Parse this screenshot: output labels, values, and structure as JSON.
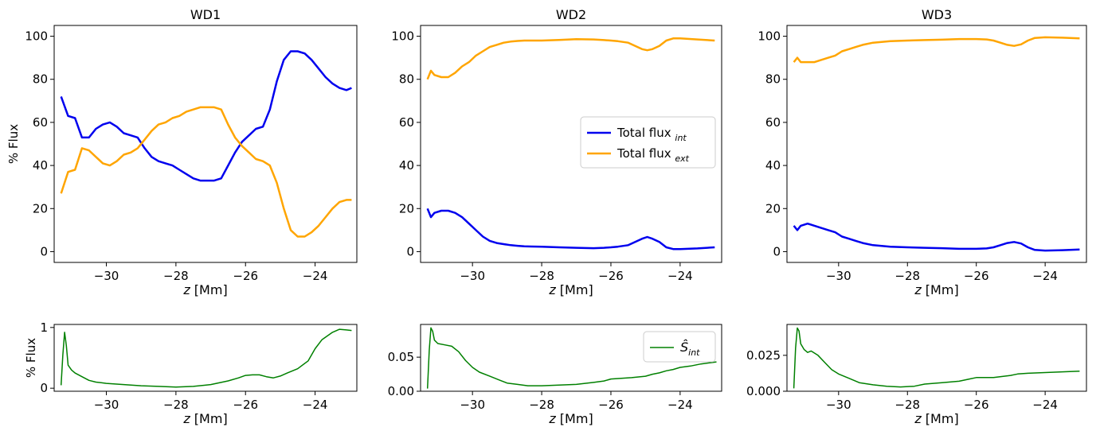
{
  "chart_data": [
    {
      "type": "line",
      "title": "WD1",
      "xlabel": "z [Mm]",
      "ylabel": "% Flux",
      "xlim": [
        -31.5,
        -22.8
      ],
      "ylim": [
        -5,
        105
      ],
      "xticks": [
        -30,
        -28,
        -26,
        -24
      ],
      "xtick_labels": [
        "−30",
        "−28",
        "−26",
        "−24"
      ],
      "yticks": [
        0,
        20,
        40,
        60,
        80,
        100
      ],
      "ytick_labels": [
        "0",
        "20",
        "40",
        "60",
        "80",
        "100"
      ],
      "series": [
        {
          "color": "#0000ee",
          "x": [
            -31.3,
            -31.1,
            -30.9,
            -30.7,
            -30.5,
            -30.3,
            -30.1,
            -29.9,
            -29.7,
            -29.5,
            -29.3,
            -29.1,
            -28.9,
            -28.7,
            -28.5,
            -28.3,
            -28.1,
            -27.9,
            -27.7,
            -27.5,
            -27.3,
            -27.1,
            -26.9,
            -26.7,
            -26.5,
            -26.3,
            -26.1,
            -25.9,
            -25.7,
            -25.5,
            -25.3,
            -25.1,
            -24.9,
            -24.7,
            -24.5,
            -24.3,
            -24.1,
            -23.9,
            -23.7,
            -23.5,
            -23.3,
            -23.1,
            -22.95
          ],
          "y": [
            72,
            63,
            62,
            53,
            53,
            57,
            59,
            60,
            58,
            55,
            54,
            53,
            48,
            44,
            42,
            41,
            40,
            38,
            36,
            34,
            33,
            33,
            33,
            34,
            40,
            46,
            51,
            54,
            57,
            58,
            66,
            79,
            89,
            93,
            93,
            92,
            89,
            85,
            81,
            78,
            76,
            75,
            76
          ]
        },
        {
          "color": "#ffa500",
          "x": [
            -31.3,
            -31.1,
            -30.9,
            -30.7,
            -30.5,
            -30.3,
            -30.1,
            -29.9,
            -29.7,
            -29.5,
            -29.3,
            -29.1,
            -28.9,
            -28.7,
            -28.5,
            -28.3,
            -28.1,
            -27.9,
            -27.7,
            -27.5,
            -27.3,
            -27.1,
            -26.9,
            -26.7,
            -26.5,
            -26.3,
            -26.1,
            -25.9,
            -25.7,
            -25.5,
            -25.3,
            -25.1,
            -24.9,
            -24.7,
            -24.5,
            -24.3,
            -24.1,
            -23.9,
            -23.7,
            -23.5,
            -23.3,
            -23.1,
            -22.95
          ],
          "y": [
            27,
            37,
            38,
            48,
            47,
            44,
            41,
            40,
            42,
            45,
            46,
            48,
            52,
            56,
            59,
            60,
            62,
            63,
            65,
            66,
            67,
            67,
            67,
            66,
            59,
            53,
            49,
            46,
            43,
            42,
            40,
            32,
            20,
            10,
            7,
            7,
            9,
            12,
            16,
            20,
            23,
            24,
            24
          ]
        }
      ]
    },
    {
      "type": "line",
      "title": "WD2",
      "xlabel": "z [Mm]",
      "ylabel": "",
      "xlim": [
        -31.5,
        -22.8
      ],
      "ylim": [
        -5,
        105
      ],
      "xticks": [
        -30,
        -28,
        -26,
        -24
      ],
      "xtick_labels": [
        "−30",
        "−28",
        "−26",
        "−24"
      ],
      "yticks": [
        0,
        20,
        40,
        60,
        80,
        100
      ],
      "ytick_labels": [
        "0",
        "20",
        "40",
        "60",
        "80",
        "100"
      ],
      "legend": {
        "placement": "center-right",
        "entries": [
          "Total flux",
          "Total flux"
        ],
        "subscripts": [
          "int",
          "ext"
        ]
      },
      "series": [
        {
          "color": "#0000ee",
          "x": [
            -31.3,
            -31.2,
            -31.1,
            -30.9,
            -30.7,
            -30.5,
            -30.3,
            -30.1,
            -29.9,
            -29.7,
            -29.5,
            -29.3,
            -29.1,
            -28.9,
            -28.7,
            -28.5,
            -28.3,
            -28.0,
            -27.5,
            -27.0,
            -26.5,
            -26.2,
            -26.0,
            -25.8,
            -25.5,
            -25.3,
            -25.1,
            -24.95,
            -24.8,
            -24.6,
            -24.4,
            -24.2,
            -24.0,
            -23.5,
            -23.0
          ],
          "y": [
            20,
            16,
            18,
            19,
            19,
            18,
            16,
            13,
            10,
            7,
            5,
            4,
            3.5,
            3,
            2.7,
            2.5,
            2.4,
            2.3,
            2,
            1.8,
            1.6,
            1.8,
            2,
            2.3,
            3,
            4.5,
            6,
            6.8,
            6,
            4.5,
            2,
            1.2,
            1.2,
            1.5,
            2
          ]
        },
        {
          "color": "#ffa500",
          "x": [
            -31.3,
            -31.2,
            -31.1,
            -30.9,
            -30.7,
            -30.5,
            -30.3,
            -30.1,
            -29.9,
            -29.7,
            -29.5,
            -29.3,
            -29.1,
            -28.9,
            -28.7,
            -28.5,
            -28.3,
            -28.0,
            -27.5,
            -27.0,
            -26.5,
            -26.2,
            -26.0,
            -25.8,
            -25.5,
            -25.3,
            -25.1,
            -24.95,
            -24.8,
            -24.6,
            -24.4,
            -24.2,
            -24.0,
            -23.5,
            -23.0
          ],
          "y": [
            80,
            84,
            82,
            81,
            81,
            83,
            86,
            88,
            91,
            93,
            95,
            96,
            97,
            97.5,
            97.8,
            98,
            98,
            98,
            98.3,
            98.6,
            98.5,
            98.2,
            98,
            97.7,
            97,
            95.5,
            94,
            93.5,
            94,
            95.5,
            98,
            99,
            99,
            98.5,
            98
          ]
        }
      ]
    },
    {
      "type": "line",
      "title": "WD3",
      "xlabel": "z [Mm]",
      "ylabel": "",
      "xlim": [
        -31.5,
        -22.8
      ],
      "ylim": [
        -5,
        105
      ],
      "xticks": [
        -30,
        -28,
        -26,
        -24
      ],
      "xtick_labels": [
        "−30",
        "−28",
        "−26",
        "−24"
      ],
      "yticks": [
        0,
        20,
        40,
        60,
        80,
        100
      ],
      "ytick_labels": [
        "0",
        "20",
        "40",
        "60",
        "80",
        "100"
      ],
      "series": [
        {
          "color": "#0000ee",
          "x": [
            -31.3,
            -31.2,
            -31.1,
            -30.9,
            -30.7,
            -30.5,
            -30.3,
            -30.1,
            -29.9,
            -29.7,
            -29.5,
            -29.3,
            -29.0,
            -28.5,
            -28.0,
            -27.5,
            -27.0,
            -26.5,
            -26.0,
            -25.7,
            -25.5,
            -25.3,
            -25.1,
            -24.9,
            -24.7,
            -24.5,
            -24.3,
            -24.0,
            -23.5,
            -23.0
          ],
          "y": [
            12,
            10,
            12,
            13,
            12,
            11,
            10,
            9,
            7,
            6,
            5,
            4,
            3,
            2.3,
            2,
            1.8,
            1.6,
            1.3,
            1.3,
            1.5,
            2,
            3,
            4,
            4.5,
            3.8,
            2,
            0.8,
            0.5,
            0.7,
            1
          ]
        },
        {
          "color": "#ffa500",
          "x": [
            -31.3,
            -31.2,
            -31.1,
            -30.9,
            -30.7,
            -30.5,
            -30.3,
            -30.1,
            -29.9,
            -29.7,
            -29.5,
            -29.3,
            -29.0,
            -28.5,
            -28.0,
            -27.5,
            -27.0,
            -26.5,
            -26.0,
            -25.7,
            -25.5,
            -25.3,
            -25.1,
            -24.9,
            -24.7,
            -24.5,
            -24.3,
            -24.0,
            -23.5,
            -23.0
          ],
          "y": [
            88,
            90,
            88,
            88,
            88,
            89,
            90,
            91,
            93,
            94,
            95,
            96,
            97,
            97.7,
            98,
            98.2,
            98.4,
            98.7,
            98.7,
            98.5,
            98,
            97,
            96,
            95.5,
            96.2,
            98,
            99.2,
            99.5,
            99.3,
            99
          ]
        }
      ]
    },
    {
      "type": "line",
      "title": "",
      "xlabel": "z [Mm]",
      "ylabel": "% Flux",
      "xlim": [
        -31.5,
        -22.8
      ],
      "ylim": [
        -0.05,
        1.05
      ],
      "xticks": [
        -30,
        -28,
        -26,
        -24
      ],
      "xtick_labels": [
        "−30",
        "−28",
        "−26",
        "−24"
      ],
      "yticks": [
        0,
        1
      ],
      "ytick_labels": [
        "0",
        "1"
      ],
      "series": [
        {
          "color": "#008000",
          "x": [
            -31.3,
            -31.25,
            -31.2,
            -31.15,
            -31.1,
            -31.0,
            -30.9,
            -30.7,
            -30.5,
            -30.3,
            -30.0,
            -29.5,
            -29.0,
            -28.5,
            -28.0,
            -27.5,
            -27.0,
            -26.5,
            -26.2,
            -26.0,
            -25.8,
            -25.6,
            -25.4,
            -25.2,
            -25.0,
            -24.8,
            -24.5,
            -24.2,
            -24.0,
            -23.8,
            -23.5,
            -23.3,
            -23.1,
            -22.95
          ],
          "y": [
            0.05,
            0.55,
            0.92,
            0.7,
            0.38,
            0.3,
            0.25,
            0.19,
            0.13,
            0.1,
            0.08,
            0.06,
            0.04,
            0.03,
            0.02,
            0.03,
            0.06,
            0.12,
            0.17,
            0.21,
            0.22,
            0.22,
            0.19,
            0.17,
            0.2,
            0.25,
            0.32,
            0.45,
            0.65,
            0.8,
            0.92,
            0.97,
            0.96,
            0.95
          ]
        }
      ]
    },
    {
      "type": "line",
      "title": "",
      "xlabel": "z [Mm]",
      "ylabel": "",
      "xlim": [
        -31.5,
        -22.8
      ],
      "ylim": [
        0,
        0.098
      ],
      "xticks": [
        -30,
        -28,
        -26,
        -24
      ],
      "xtick_labels": [
        "−30",
        "−28",
        "−26",
        "−24"
      ],
      "yticks": [
        0,
        0.05
      ],
      "ytick_labels": [
        "0.00",
        "0.05"
      ],
      "legend": {
        "placement": "top-right",
        "entries": [
          "Ŝ"
        ],
        "subscripts": [
          "int"
        ]
      },
      "series": [
        {
          "color": "#008000",
          "x": [
            -31.3,
            -31.25,
            -31.2,
            -31.15,
            -31.1,
            -31.0,
            -30.8,
            -30.6,
            -30.4,
            -30.2,
            -30.0,
            -29.8,
            -29.5,
            -29.2,
            -29.0,
            -28.7,
            -28.4,
            -28.0,
            -27.5,
            -27.0,
            -26.5,
            -26.2,
            -26.0,
            -25.7,
            -25.4,
            -25.2,
            -25.0,
            -24.8,
            -24.6,
            -24.4,
            -24.2,
            -24.0,
            -23.7,
            -23.4,
            -23.1,
            -22.95
          ],
          "y": [
            0.004,
            0.06,
            0.093,
            0.088,
            0.075,
            0.07,
            0.068,
            0.066,
            0.058,
            0.045,
            0.035,
            0.028,
            0.022,
            0.016,
            0.012,
            0.01,
            0.008,
            0.008,
            0.009,
            0.01,
            0.013,
            0.015,
            0.018,
            0.019,
            0.02,
            0.021,
            0.022,
            0.025,
            0.027,
            0.03,
            0.032,
            0.035,
            0.037,
            0.04,
            0.042,
            0.043
          ]
        }
      ]
    },
    {
      "type": "line",
      "title": "",
      "xlabel": "z [Mm]",
      "ylabel": "",
      "xlim": [
        -31.5,
        -22.8
      ],
      "ylim": [
        0,
        0.0465
      ],
      "xticks": [
        -30,
        -28,
        -26,
        -24
      ],
      "xtick_labels": [
        "−30",
        "−28",
        "−26",
        "−24"
      ],
      "yticks": [
        0,
        0.025
      ],
      "ytick_labels": [
        "0.000",
        "0.025"
      ],
      "series": [
        {
          "color": "#008000",
          "x": [
            -31.3,
            -31.25,
            -31.2,
            -31.15,
            -31.1,
            -31.0,
            -30.9,
            -30.8,
            -30.6,
            -30.4,
            -30.2,
            -30.0,
            -29.7,
            -29.4,
            -29.0,
            -28.6,
            -28.2,
            -27.8,
            -27.5,
            -27.0,
            -26.5,
            -26.2,
            -26.0,
            -25.5,
            -25.0,
            -24.8,
            -24.5,
            -24.0,
            -23.5,
            -23.0
          ],
          "y": [
            0.002,
            0.03,
            0.044,
            0.042,
            0.033,
            0.029,
            0.027,
            0.028,
            0.025,
            0.02,
            0.015,
            0.012,
            0.009,
            0.006,
            0.0045,
            0.0035,
            0.003,
            0.0035,
            0.005,
            0.006,
            0.007,
            0.0085,
            0.0095,
            0.0095,
            0.011,
            0.012,
            0.0125,
            0.013,
            0.0135,
            0.014
          ]
        }
      ]
    }
  ]
}
